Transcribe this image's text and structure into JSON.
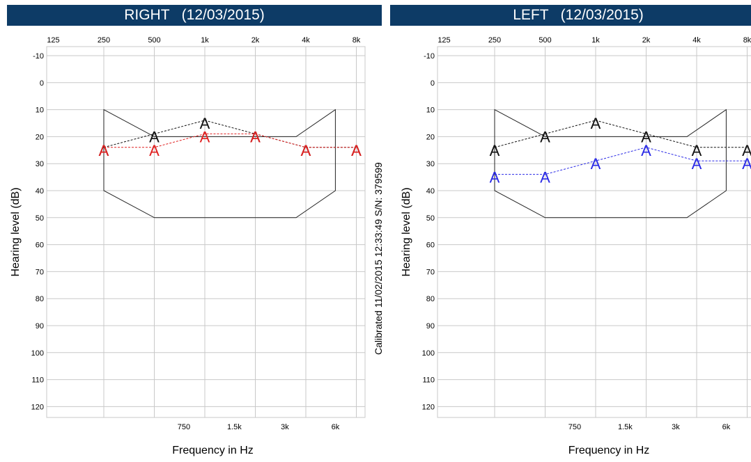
{
  "calibration_text": "Calibrated  11/02/2015 12:33:49  S/N: 379599",
  "colors": {
    "title_bar": "#0d3b66",
    "normal_range": "#222222",
    "right_air": "#e02020",
    "left_air": "#2a2ae6",
    "bone": "#111111",
    "grid": "#c8c8c8"
  },
  "chart_data": [
    {
      "type": "line",
      "title": "RIGHT   (12/03/2015)",
      "xlabel": "Frequency in Hz",
      "ylabel": "Hearing level (dB)",
      "scale": "log2",
      "x_ticks_top": [
        {
          "value": 125,
          "label": "125"
        },
        {
          "value": 250,
          "label": "250"
        },
        {
          "value": 500,
          "label": "500"
        },
        {
          "value": 1000,
          "label": "1k"
        },
        {
          "value": 2000,
          "label": "2k"
        },
        {
          "value": 4000,
          "label": "4k"
        },
        {
          "value": 8000,
          "label": "8k"
        }
      ],
      "x_ticks_bottom": [
        {
          "value": 750,
          "label": "750"
        },
        {
          "value": 1500,
          "label": "1.5k"
        },
        {
          "value": 3000,
          "label": "3k"
        },
        {
          "value": 6000,
          "label": "6k"
        }
      ],
      "y_ticks": [
        -10,
        0,
        10,
        20,
        30,
        40,
        50,
        60,
        70,
        80,
        90,
        100,
        110,
        120
      ],
      "ylim": [
        -10,
        120
      ],
      "y_inverted": true,
      "normal_range": [
        {
          "x": 250,
          "y": 10
        },
        {
          "x": 500,
          "y": 20
        },
        {
          "x": 3500,
          "y": 20
        },
        {
          "x": 6000,
          "y": 10
        },
        {
          "x": 6000,
          "y": 40
        },
        {
          "x": 3500,
          "y": 50
        },
        {
          "x": 500,
          "y": 50
        },
        {
          "x": 250,
          "y": 40
        }
      ],
      "series": [
        {
          "symbol": "A",
          "color": "#111111",
          "points": [
            {
              "x": 250,
              "y": 25
            },
            {
              "x": 500,
              "y": 20
            },
            {
              "x": 1000,
              "y": 15
            },
            {
              "x": 2000,
              "y": 20
            },
            {
              "x": 4000,
              "y": 25
            },
            {
              "x": 8000,
              "y": 25
            }
          ]
        },
        {
          "symbol": "A",
          "color": "#e02020",
          "points": [
            {
              "x": 250,
              "y": 25
            },
            {
              "x": 500,
              "y": 25
            },
            {
              "x": 1000,
              "y": 20
            },
            {
              "x": 2000,
              "y": 20
            },
            {
              "x": 4000,
              "y": 25
            },
            {
              "x": 8000,
              "y": 25
            }
          ]
        }
      ]
    },
    {
      "type": "line",
      "title": "LEFT   (12/03/2015)",
      "xlabel": "Frequency in Hz",
      "ylabel": "Hearing level (dB)",
      "scale": "log2",
      "x_ticks_top": [
        {
          "value": 125,
          "label": "125"
        },
        {
          "value": 250,
          "label": "250"
        },
        {
          "value": 500,
          "label": "500"
        },
        {
          "value": 1000,
          "label": "1k"
        },
        {
          "value": 2000,
          "label": "2k"
        },
        {
          "value": 4000,
          "label": "4k"
        },
        {
          "value": 8000,
          "label": "8k"
        }
      ],
      "x_ticks_bottom": [
        {
          "value": 750,
          "label": "750"
        },
        {
          "value": 1500,
          "label": "1.5k"
        },
        {
          "value": 3000,
          "label": "3k"
        },
        {
          "value": 6000,
          "label": "6k"
        }
      ],
      "y_ticks": [
        -10,
        0,
        10,
        20,
        30,
        40,
        50,
        60,
        70,
        80,
        90,
        100,
        110,
        120
      ],
      "ylim": [
        -10,
        120
      ],
      "y_inverted": true,
      "normal_range": [
        {
          "x": 250,
          "y": 10
        },
        {
          "x": 500,
          "y": 20
        },
        {
          "x": 3500,
          "y": 20
        },
        {
          "x": 6000,
          "y": 10
        },
        {
          "x": 6000,
          "y": 40
        },
        {
          "x": 3500,
          "y": 50
        },
        {
          "x": 500,
          "y": 50
        },
        {
          "x": 250,
          "y": 40
        }
      ],
      "series": [
        {
          "symbol": "A",
          "color": "#111111",
          "points": [
            {
              "x": 250,
              "y": 25
            },
            {
              "x": 500,
              "y": 20
            },
            {
              "x": 1000,
              "y": 15
            },
            {
              "x": 2000,
              "y": 20
            },
            {
              "x": 4000,
              "y": 25
            },
            {
              "x": 8000,
              "y": 25
            }
          ]
        },
        {
          "symbol": "A",
          "color": "#2a2ae6",
          "points": [
            {
              "x": 250,
              "y": 35
            },
            {
              "x": 500,
              "y": 35
            },
            {
              "x": 1000,
              "y": 30
            },
            {
              "x": 2000,
              "y": 25
            },
            {
              "x": 4000,
              "y": 30
            },
            {
              "x": 8000,
              "y": 30
            }
          ]
        }
      ]
    }
  ]
}
